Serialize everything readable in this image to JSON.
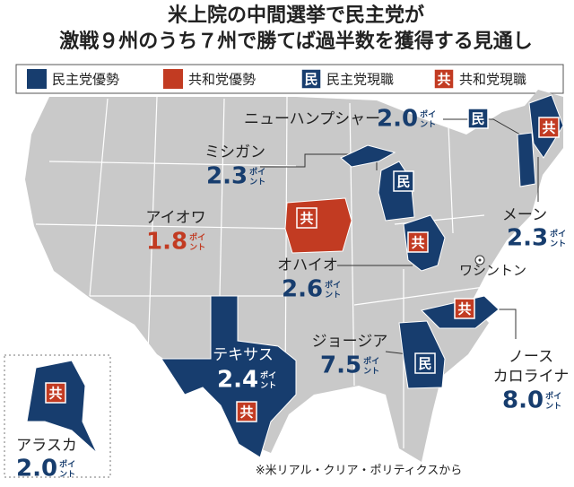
{
  "header": {
    "title": [
      "米上院の中間選挙で民主党が",
      "激戦９州のうち７州で勝てば過半数を獲得する見通し"
    ]
  },
  "legend": [
    {
      "label": "民主党優勢",
      "color": "#173d6e"
    },
    {
      "label": "共和党優勢",
      "color": "#c23b22"
    },
    {
      "badge": "民",
      "label": "民主党現職",
      "color": "#173d6e"
    },
    {
      "badge": "共",
      "label": "共和党現職",
      "color": "#c23b22"
    }
  ],
  "unit": [
    "ポイ",
    "ント"
  ],
  "states": [
    {
      "name": "ニューハンプシャー",
      "margin": "2.0",
      "color": "#173d6e",
      "badge": "民",
      "badge_color": "#173d6e"
    },
    {
      "name": "ミシガン",
      "margin": "2.3",
      "color": "#173d6e",
      "badge": "民",
      "badge_color": "#173d6e"
    },
    {
      "name": "アイオワ",
      "margin": "1.8",
      "color": "#c23b22",
      "badge": "共",
      "badge_color": "#c23b22"
    },
    {
      "name": "オハイオ",
      "margin": "2.6",
      "color": "#173d6e",
      "badge": "共",
      "badge_color": "#c23b22"
    },
    {
      "name": "テキサス",
      "margin": "2.4",
      "color": "#173d6e",
      "badge": "共",
      "badge_color": "#c23b22"
    },
    {
      "name": "ジョージア",
      "margin": "7.5",
      "color": "#173d6e",
      "badge": "民",
      "badge_color": "#173d6e"
    },
    {
      "name": [
        "ノース",
        "カロライナ"
      ],
      "margin": "8.0",
      "color": "#173d6e",
      "badge": "共",
      "badge_color": "#c23b22"
    },
    {
      "name": "メーン",
      "margin": "2.3",
      "color": "#173d6e",
      "badge": "共",
      "badge_color": "#c23b22"
    },
    {
      "name": "アラスカ",
      "margin": "2.0",
      "color": "#173d6e",
      "badge": "共",
      "badge_color": "#c23b22"
    }
  ],
  "capital": "ワシントン",
  "source": "※米リアル・クリア・ポリティクスから"
}
